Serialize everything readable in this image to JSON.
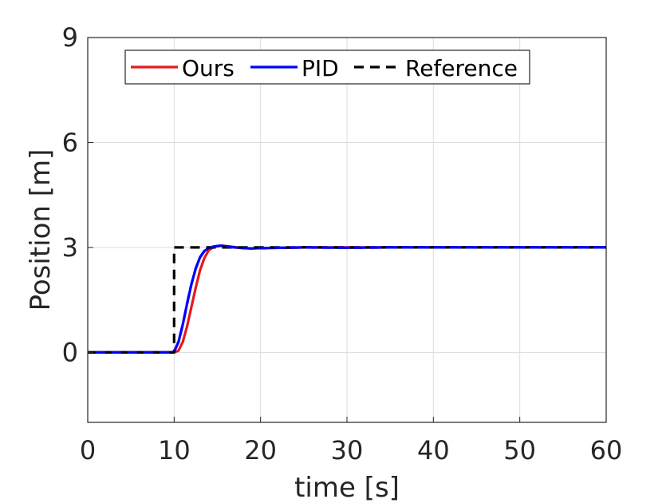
{
  "chart_data": {
    "type": "line",
    "xlabel": "time [s]",
    "ylabel": "Position [m]",
    "xlim": [
      0,
      60
    ],
    "ylim": [
      -2,
      9
    ],
    "xticks": [
      0,
      10,
      20,
      30,
      40,
      50,
      60
    ],
    "yticks": [
      0,
      3,
      6,
      9
    ],
    "grid": true,
    "legend_position": "top, horizontal",
    "series": [
      {
        "name": "Ours",
        "color": "#e41a1c",
        "style": "solid",
        "x": [
          0,
          10,
          10.5,
          11,
          11.5,
          12,
          12.5,
          13,
          13.5,
          14,
          14.5,
          15,
          15.5,
          16,
          17,
          18,
          19,
          20,
          25,
          30,
          35,
          40,
          45,
          50,
          55,
          60
        ],
        "y": [
          0,
          0,
          0.05,
          0.3,
          0.75,
          1.3,
          1.85,
          2.35,
          2.7,
          2.92,
          3.0,
          3.04,
          3.05,
          3.04,
          3.01,
          2.98,
          2.97,
          2.98,
          3.0,
          3.0,
          3.0,
          3.0,
          3.0,
          3.0,
          3.0,
          3.0
        ]
      },
      {
        "name": "PID",
        "color": "#0000ff",
        "style": "solid",
        "x": [
          0,
          9.8,
          10,
          10.5,
          11,
          11.5,
          12,
          12.5,
          13,
          13.5,
          14,
          14.5,
          15,
          15.5,
          16,
          17,
          18,
          19,
          20,
          25,
          30,
          35,
          40,
          45,
          50,
          55,
          60
        ],
        "y": [
          0,
          0,
          0.02,
          0.3,
          0.8,
          1.4,
          1.95,
          2.4,
          2.72,
          2.9,
          2.98,
          3.02,
          3.04,
          3.05,
          3.03,
          3.0,
          2.98,
          2.97,
          2.98,
          3.0,
          2.99,
          3.0,
          3.0,
          3.0,
          3.0,
          3.0,
          3.0
        ]
      },
      {
        "name": "Reference",
        "color": "#000000",
        "style": "dashed",
        "x": [
          0,
          10,
          10,
          60
        ],
        "y": [
          0,
          0,
          3,
          3
        ]
      }
    ]
  }
}
